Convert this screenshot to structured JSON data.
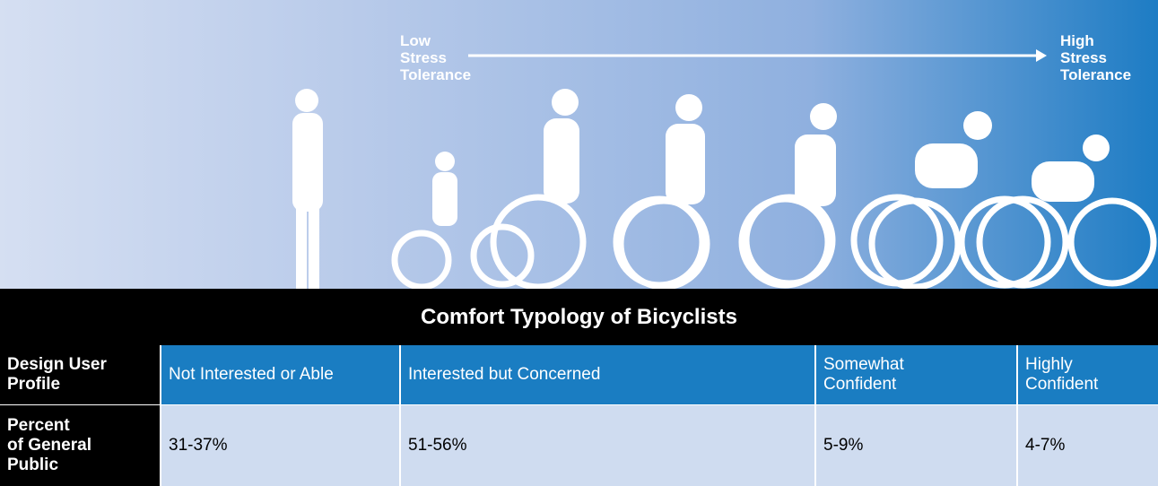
{
  "header": {
    "low_label": [
      "Low",
      "Stress",
      "Tolerance"
    ],
    "high_label": [
      "High",
      "Stress",
      "Tolerance"
    ]
  },
  "table": {
    "title": "Comfort Typology of Bicyclists",
    "rows": [
      [
        [
          "Design User",
          "Profile"
        ],
        [
          "Not Interested or Able"
        ],
        [
          "Interested but Concerned"
        ],
        [
          "Somewhat",
          "Confident"
        ],
        [
          "Highly",
          "Confident"
        ]
      ],
      [
        [
          "Percent",
          "of General",
          "Public"
        ],
        [
          "31-37%"
        ],
        [
          "51-56%"
        ],
        [
          "5-9%"
        ],
        [
          "4-7%"
        ]
      ]
    ]
  }
}
